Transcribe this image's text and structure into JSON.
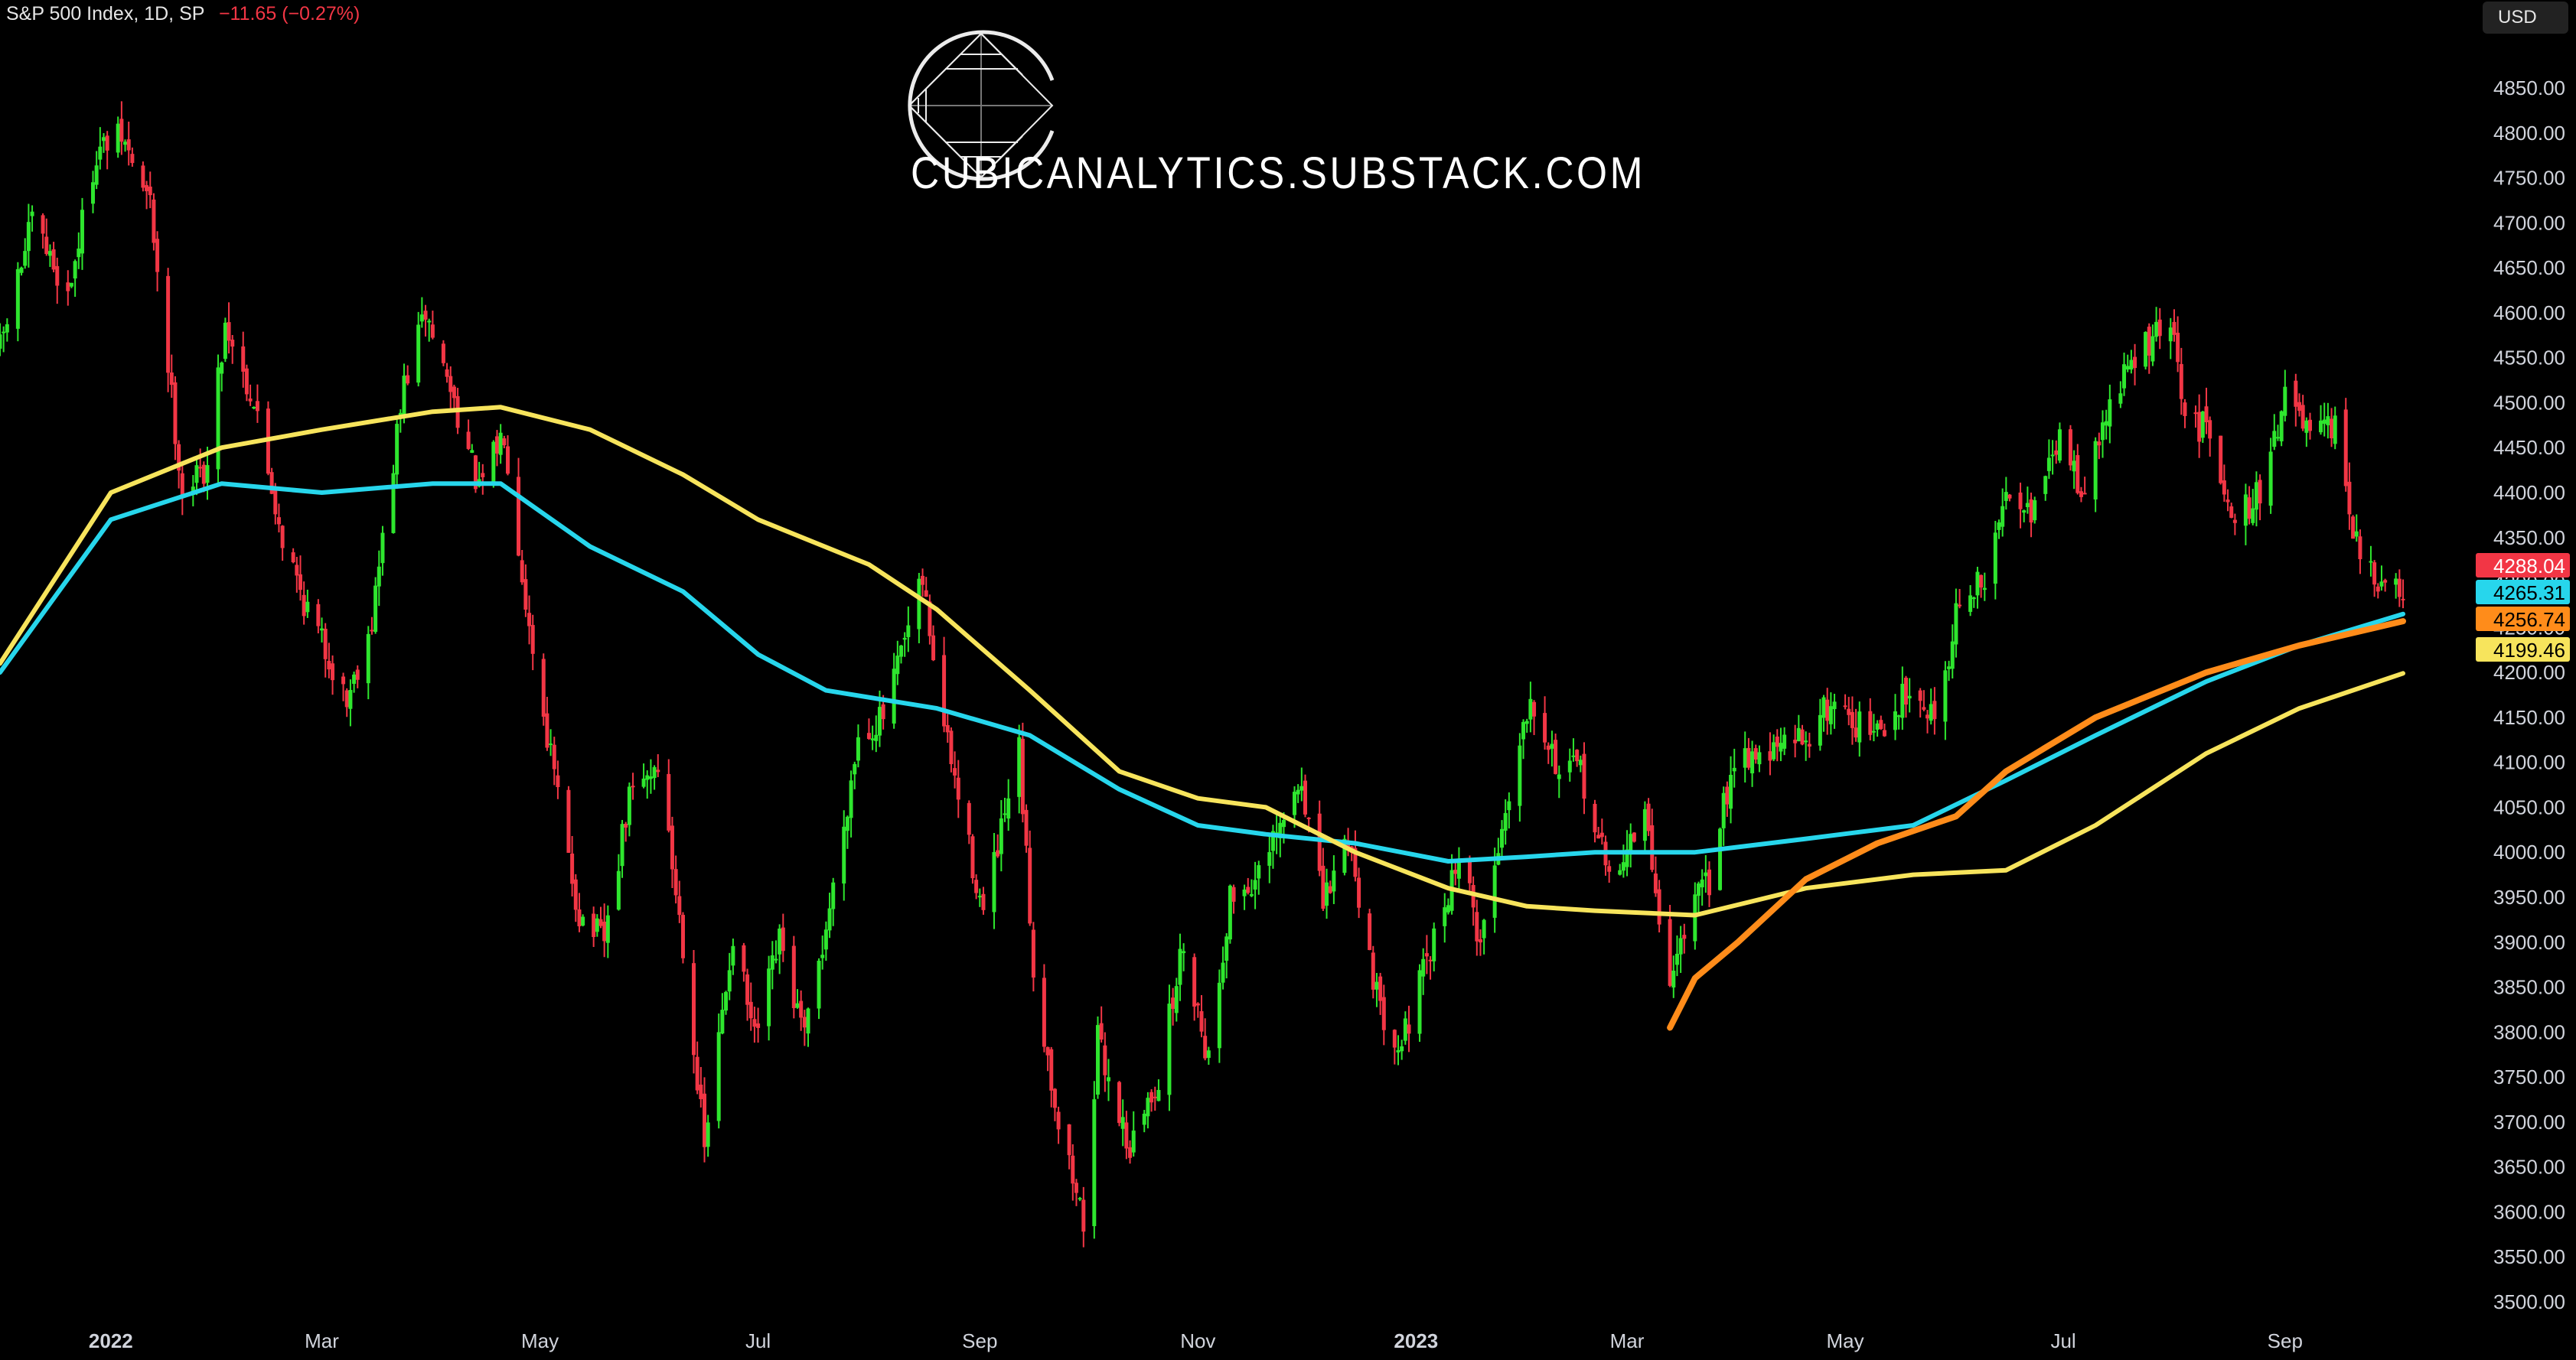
{
  "header": {
    "symbol": "S&P 500 Index, 1D, SP",
    "change": "−11.65 (−0.27%)"
  },
  "currency_button": "USD",
  "watermark": "CUBICANALYTICS.SUBSTACK.COM",
  "colors": {
    "up": "#2ee62e",
    "down": "#f23645",
    "ma_cyan": "#27d6ec",
    "ma_yellow": "#f7e45c",
    "ma_orange": "#ff8c1a",
    "background": "#000000",
    "axis_text": "#d1d4dc"
  },
  "chart_data": {
    "type": "candlestick",
    "title": "",
    "xlabel": "",
    "ylabel": "",
    "ylim": [
      3470,
      4870
    ],
    "yticks": [
      3500,
      3550,
      3600,
      3650,
      3700,
      3750,
      3800,
      3850,
      3900,
      3950,
      4000,
      4050,
      4100,
      4150,
      4200,
      4250,
      4300,
      4350,
      4400,
      4450,
      4500,
      4550,
      4600,
      4650,
      4700,
      4750,
      4800,
      4850
    ],
    "ytick_labels": [
      "3500.00",
      "3550.00",
      "3600.00",
      "3650.00",
      "3700.00",
      "3750.00",
      "3800.00",
      "3850.00",
      "3900.00",
      "3950.00",
      "4000.00",
      "4050.00",
      "4100.00",
      "4150.00",
      "4200.00",
      "4250.00",
      "4300.00",
      "4350.00",
      "4400.00",
      "4450.00",
      "4500.00",
      "4550.00",
      "4600.00",
      "4650.00",
      "4700.00",
      "4750.00",
      "4800.00",
      "4850.00"
    ],
    "xlim": [
      "2021-12-01",
      "2023-10-04"
    ],
    "xticks": [
      {
        "date": "2022-01-01",
        "label": "2022",
        "bold": true
      },
      {
        "date": "2022-03-01",
        "label": "Mar"
      },
      {
        "date": "2022-05-01",
        "label": "May"
      },
      {
        "date": "2022-07-01",
        "label": "Jul"
      },
      {
        "date": "2022-09-01",
        "label": "Sep"
      },
      {
        "date": "2022-11-01",
        "label": "Nov"
      },
      {
        "date": "2023-01-01",
        "label": "2023",
        "bold": true
      },
      {
        "date": "2023-03-01",
        "label": "Mar"
      },
      {
        "date": "2023-05-01",
        "label": "May"
      },
      {
        "date": "2023-07-01",
        "label": "Jul"
      },
      {
        "date": "2023-09-01",
        "label": "Sep"
      }
    ],
    "close_path": [
      [
        "2021-12-01",
        4560
      ],
      [
        "2021-12-10",
        4700
      ],
      [
        "2021-12-20",
        4620
      ],
      [
        "2021-12-28",
        4780
      ],
      [
        "2022-01-04",
        4795
      ],
      [
        "2022-01-12",
        4720
      ],
      [
        "2022-01-21",
        4400
      ],
      [
        "2022-01-28",
        4430
      ],
      [
        "2022-02-02",
        4590
      ],
      [
        "2022-02-10",
        4500
      ],
      [
        "2022-02-18",
        4350
      ],
      [
        "2022-02-24",
        4280
      ],
      [
        "2022-03-08",
        4170
      ],
      [
        "2022-03-15",
        4260
      ],
      [
        "2022-03-24",
        4520
      ],
      [
        "2022-03-30",
        4600
      ],
      [
        "2022-04-08",
        4490
      ],
      [
        "2022-04-14",
        4400
      ],
      [
        "2022-04-21",
        4470
      ],
      [
        "2022-04-28",
        4250
      ],
      [
        "2022-05-09",
        3990
      ],
      [
        "2022-05-12",
        3930
      ],
      [
        "2022-05-19",
        3900
      ],
      [
        "2022-05-26",
        4060
      ],
      [
        "2022-06-03",
        4100
      ],
      [
        "2022-06-10",
        3900
      ],
      [
        "2022-06-16",
        3670
      ],
      [
        "2022-06-24",
        3910
      ],
      [
        "2022-06-30",
        3790
      ],
      [
        "2022-07-07",
        3900
      ],
      [
        "2022-07-14",
        3790
      ],
      [
        "2022-07-22",
        3960
      ],
      [
        "2022-07-29",
        4130
      ],
      [
        "2022-08-05",
        4150
      ],
      [
        "2022-08-16",
        4300
      ],
      [
        "2022-08-22",
        4140
      ],
      [
        "2022-08-26",
        4060
      ],
      [
        "2022-09-02",
        3930
      ],
      [
        "2022-09-12",
        4110
      ],
      [
        "2022-09-16",
        3870
      ],
      [
        "2022-09-23",
        3700
      ],
      [
        "2022-09-30",
        3590
      ],
      [
        "2022-10-04",
        3790
      ],
      [
        "2022-10-13",
        3670
      ],
      [
        "2022-10-21",
        3750
      ],
      [
        "2022-10-28",
        3900
      ],
      [
        "2022-11-04",
        3770
      ],
      [
        "2022-11-10",
        3950
      ],
      [
        "2022-11-18",
        3970
      ],
      [
        "2022-11-30",
        4080
      ],
      [
        "2022-12-06",
        3940
      ],
      [
        "2022-12-13",
        4020
      ],
      [
        "2022-12-22",
        3820
      ],
      [
        "2022-12-28",
        3790
      ],
      [
        "2023-01-06",
        3900
      ],
      [
        "2023-01-13",
        4000
      ],
      [
        "2023-01-19",
        3900
      ],
      [
        "2023-01-27",
        4070
      ],
      [
        "2023-02-02",
        4180
      ],
      [
        "2023-02-10",
        4090
      ],
      [
        "2023-02-16",
        4090
      ],
      [
        "2023-02-24",
        3970
      ],
      [
        "2023-03-06",
        4040
      ],
      [
        "2023-03-13",
        3850
      ],
      [
        "2023-03-17",
        3920
      ],
      [
        "2023-03-24",
        3970
      ],
      [
        "2023-03-31",
        4110
      ],
      [
        "2023-04-10",
        4110
      ],
      [
        "2023-04-20",
        4130
      ],
      [
        "2023-04-28",
        4170
      ],
      [
        "2023-05-05",
        4140
      ],
      [
        "2023-05-12",
        4130
      ],
      [
        "2023-05-19",
        4190
      ],
      [
        "2023-05-26",
        4150
      ],
      [
        "2023-06-02",
        4280
      ],
      [
        "2023-06-09",
        4300
      ],
      [
        "2023-06-16",
        4410
      ],
      [
        "2023-06-23",
        4380
      ],
      [
        "2023-06-30",
        4460
      ],
      [
        "2023-07-07",
        4400
      ],
      [
        "2023-07-14",
        4500
      ],
      [
        "2023-07-21",
        4550
      ],
      [
        "2023-07-31",
        4590
      ],
      [
        "2023-08-04",
        4480
      ],
      [
        "2023-08-11",
        4470
      ],
      [
        "2023-08-18",
        4370
      ],
      [
        "2023-08-25",
        4400
      ],
      [
        "2023-09-01",
        4510
      ],
      [
        "2023-09-08",
        4460
      ],
      [
        "2023-09-15",
        4470
      ],
      [
        "2023-09-22",
        4320
      ],
      [
        "2023-09-29",
        4290
      ],
      [
        "2023-10-04",
        4288
      ]
    ],
    "series": [
      {
        "color": "#27d6ec",
        "last_label": "4265.31",
        "points": [
          [
            "2021-12-01",
            4200
          ],
          [
            "2022-01-01",
            4370
          ],
          [
            "2022-02-01",
            4410
          ],
          [
            "2022-03-01",
            4400
          ],
          [
            "2022-04-01",
            4410
          ],
          [
            "2022-04-20",
            4410
          ],
          [
            "2022-05-15",
            4340
          ],
          [
            "2022-06-10",
            4290
          ],
          [
            "2022-07-01",
            4220
          ],
          [
            "2022-07-20",
            4180
          ],
          [
            "2022-08-20",
            4160
          ],
          [
            "2022-09-15",
            4130
          ],
          [
            "2022-10-10",
            4070
          ],
          [
            "2022-11-01",
            4030
          ],
          [
            "2022-11-20",
            4020
          ],
          [
            "2022-12-15",
            4010
          ],
          [
            "2023-01-10",
            3990
          ],
          [
            "2023-02-01",
            3995
          ],
          [
            "2023-02-20",
            4000
          ],
          [
            "2023-03-20",
            4000
          ],
          [
            "2023-04-20",
            4015
          ],
          [
            "2023-05-20",
            4030
          ],
          [
            "2023-06-15",
            4080
          ],
          [
            "2023-07-10",
            4130
          ],
          [
            "2023-08-10",
            4190
          ],
          [
            "2023-09-05",
            4230
          ],
          [
            "2023-10-04",
            4265
          ]
        ]
      },
      {
        "color": "#f7e45c",
        "last_label": "4199.46",
        "points": [
          [
            "2021-12-01",
            4210
          ],
          [
            "2022-01-01",
            4400
          ],
          [
            "2022-02-01",
            4450
          ],
          [
            "2022-03-01",
            4470
          ],
          [
            "2022-04-01",
            4490
          ],
          [
            "2022-04-20",
            4495
          ],
          [
            "2022-05-15",
            4470
          ],
          [
            "2022-06-10",
            4420
          ],
          [
            "2022-07-01",
            4370
          ],
          [
            "2022-08-01",
            4320
          ],
          [
            "2022-08-20",
            4270
          ],
          [
            "2022-09-15",
            4180
          ],
          [
            "2022-10-10",
            4090
          ],
          [
            "2022-11-01",
            4060
          ],
          [
            "2022-11-20",
            4050
          ],
          [
            "2022-12-15",
            4000
          ],
          [
            "2023-01-10",
            3960
          ],
          [
            "2023-02-01",
            3940
          ],
          [
            "2023-02-20",
            3935
          ],
          [
            "2023-03-20",
            3930
          ],
          [
            "2023-04-20",
            3960
          ],
          [
            "2023-05-20",
            3975
          ],
          [
            "2023-06-15",
            3980
          ],
          [
            "2023-07-10",
            4030
          ],
          [
            "2023-08-10",
            4110
          ],
          [
            "2023-09-05",
            4160
          ],
          [
            "2023-10-04",
            4199
          ]
        ]
      },
      {
        "color": "#ff8c1a",
        "last_label": "4256.74",
        "points": [
          [
            "2023-03-13",
            3805
          ],
          [
            "2023-03-20",
            3860
          ],
          [
            "2023-04-01",
            3900
          ],
          [
            "2023-04-20",
            3970
          ],
          [
            "2023-05-10",
            4010
          ],
          [
            "2023-06-01",
            4040
          ],
          [
            "2023-06-15",
            4090
          ],
          [
            "2023-07-10",
            4150
          ],
          [
            "2023-08-10",
            4200
          ],
          [
            "2023-09-05",
            4230
          ],
          [
            "2023-10-04",
            4257
          ]
        ]
      }
    ],
    "last_close": {
      "value": 4288.04,
      "label": "4288.04",
      "color": "#f23645"
    },
    "grid": false,
    "legend": "none"
  }
}
